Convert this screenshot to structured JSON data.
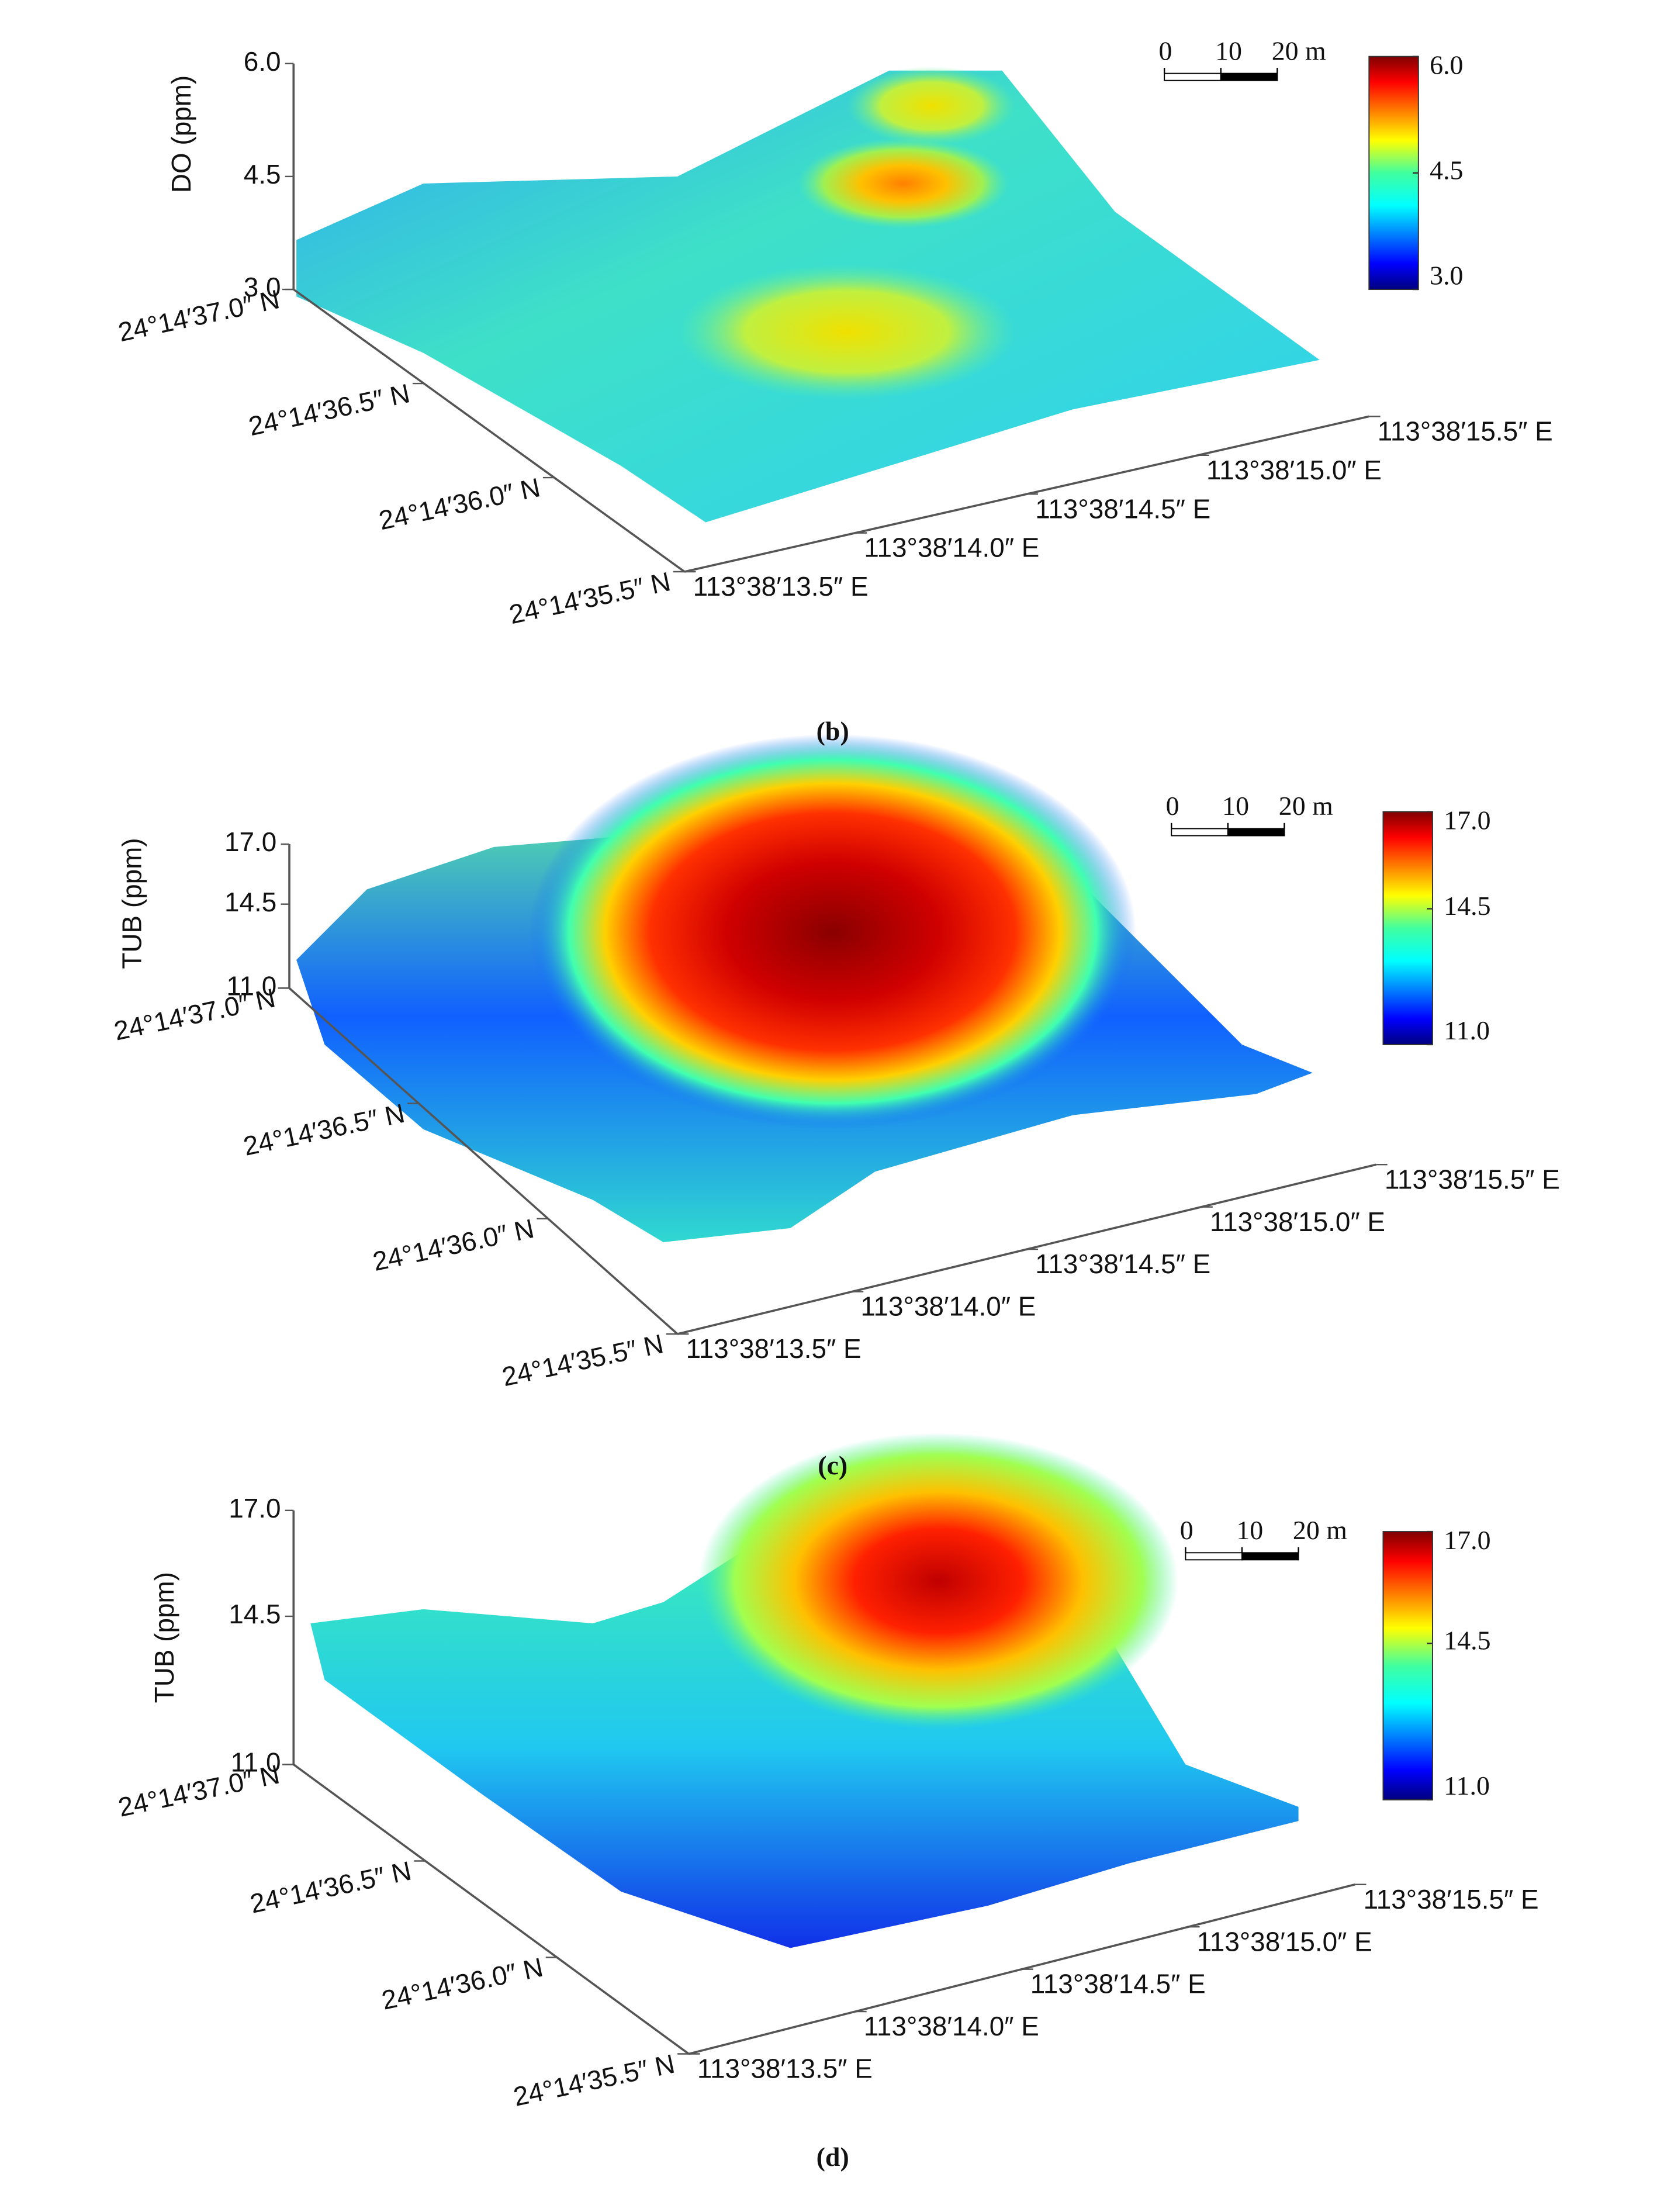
{
  "chart_data": [
    {
      "type": "surface3d",
      "caption": "(b)",
      "zlabel": "DO (ppm)",
      "zlim": [
        3,
        6
      ],
      "zticks": [
        {
          "value": 3,
          "label": "3.0"
        },
        {
          "value": 4.5,
          "label": "4.5"
        },
        {
          "value": 6,
          "label": "6.0"
        }
      ],
      "clim": [
        3,
        6
      ],
      "colorbar_ticks": [
        {
          "value": 3,
          "label": "3.0"
        },
        {
          "value": 4.5,
          "label": "4.5"
        },
        {
          "value": 6,
          "label": "6.0"
        }
      ],
      "ycategories": [
        "24°14′37.0″ N",
        "24°14′36.5″ N",
        "24°14′36.0″ N",
        "24°14′35.5″ N"
      ],
      "xcategories": [
        "113°38′13.5″ E",
        "113°38′14.0″ E",
        "113°38′14.5″ E",
        "113°38′15.0″ E",
        "113°38′15.5″ E"
      ],
      "scalebar_ticks": [
        0,
        10,
        {
          "value": 20,
          "label": "20 m"
        }
      ],
      "colormap": "jet"
    },
    {
      "type": "surface3d",
      "caption": "(c)",
      "zlabel": "TUB (ppm)",
      "zlim": [
        11,
        17
      ],
      "zticks": [
        {
          "value": 11,
          "label": "11.0"
        },
        {
          "value": 14.5,
          "label": "14.5"
        },
        {
          "value": 17,
          "label": "17.0"
        }
      ],
      "clim": [
        11,
        17
      ],
      "colorbar_ticks": [
        {
          "value": 11,
          "label": "11.0"
        },
        {
          "value": 14.5,
          "label": "14.5"
        },
        {
          "value": 17,
          "label": "17.0"
        }
      ],
      "ycategories": [
        "24°14′37.0″ N",
        "24°14′36.5″ N",
        "24°14′36.0″ N",
        "24°14′35.5″ N"
      ],
      "xcategories": [
        "113°38′13.5″ E",
        "113°38′14.0″ E",
        "113°38′14.5″ E",
        "113°38′15.0″ E",
        "113°38′15.5″ E"
      ],
      "scalebar_ticks": [
        0,
        10,
        {
          "value": 20,
          "label": "20 m"
        }
      ],
      "colormap": "jet"
    },
    {
      "type": "surface3d",
      "caption": "(d)",
      "zlabel": "TUB (ppm)",
      "zlim": [
        11,
        17
      ],
      "zticks": [
        {
          "value": 11,
          "label": "11.0"
        },
        {
          "value": 14.5,
          "label": "14.5"
        },
        {
          "value": 17,
          "label": "17.0"
        }
      ],
      "clim": [
        11,
        17
      ],
      "colorbar_ticks": [
        {
          "value": 11,
          "label": "11.0"
        },
        {
          "value": 14.5,
          "label": "14.5"
        },
        {
          "value": 17,
          "label": "17.0"
        }
      ],
      "ycategories": [
        "24°14′37.0″ N",
        "24°14′36.5″ N",
        "24°14′36.0″ N",
        "24°14′35.5″ N"
      ],
      "xcategories": [
        "113°38′13.5″ E",
        "113°38′14.0″ E",
        "113°38′14.5″ E",
        "113°38′15.0″ E",
        "113°38′15.5″ E"
      ],
      "scalebar_ticks": [
        0,
        10,
        {
          "value": 20,
          "label": "20 m"
        }
      ],
      "colormap": "jet"
    }
  ]
}
